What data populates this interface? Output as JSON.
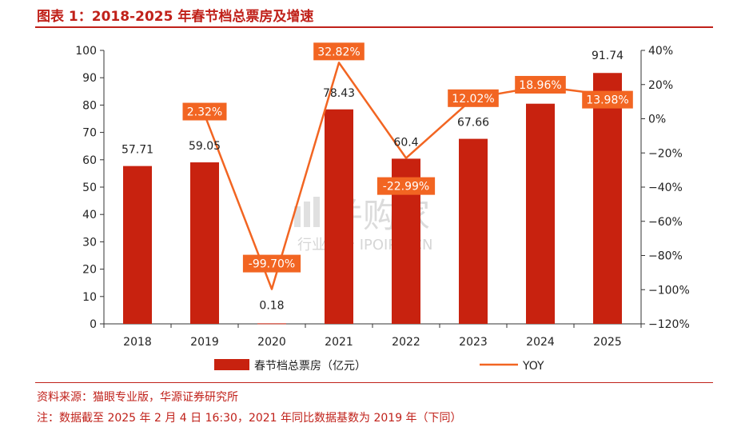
{
  "title": "图表 1：2018-2025 年春节档总票房及增速",
  "source": "资料来源：猫眼专业版，华源证券研究所",
  "footnote": "注：数据截至 2025 年 2 月 4 日 16:30，2021 年同比数据基数为 2019 年（下同）",
  "watermark": {
    "main": "并购家",
    "sub": "行业报告 IPOIPO.CN"
  },
  "colors": {
    "bar": "#c8220f",
    "line": "#f26522",
    "accent": "#c0211a"
  },
  "chart_data": {
    "type": "bar",
    "categories": [
      "2018",
      "2019",
      "2020",
      "2021",
      "2022",
      "2023",
      "2024",
      "2025"
    ],
    "series": [
      {
        "name": "春节档总票房（亿元）",
        "type": "bar",
        "axis": "left",
        "values": [
          57.71,
          59.05,
          0.18,
          78.43,
          60.4,
          67.66,
          80.5,
          91.74
        ],
        "labels": [
          "57.71",
          "59.05",
          "0.18",
          "78.43",
          "60.4",
          "67.66",
          "",
          "91.74"
        ]
      },
      {
        "name": "YOY",
        "type": "line",
        "axis": "right",
        "values": [
          null,
          2.32,
          -99.7,
          32.82,
          -22.99,
          12.02,
          18.96,
          13.98
        ],
        "labels": [
          "",
          "2.32%",
          "-99.70%",
          "32.82%",
          "-22.99%",
          "12.02%",
          "18.96%",
          "13.98%"
        ]
      }
    ],
    "left_axis": {
      "ylim": [
        0,
        100
      ],
      "ticks": [
        "0",
        "10",
        "20",
        "30",
        "40",
        "50",
        "60",
        "70",
        "80",
        "90",
        "100"
      ]
    },
    "right_axis": {
      "ylim": [
        -120,
        40
      ],
      "ticks": [
        "−120%",
        "−100%",
        "−80%",
        "−60%",
        "−40%",
        "−20%",
        "0%",
        "20%",
        "40%"
      ]
    },
    "legend": {
      "position": "bottom",
      "items": [
        "春节档总票房（亿元）",
        "YOY"
      ]
    },
    "grid": false
  }
}
